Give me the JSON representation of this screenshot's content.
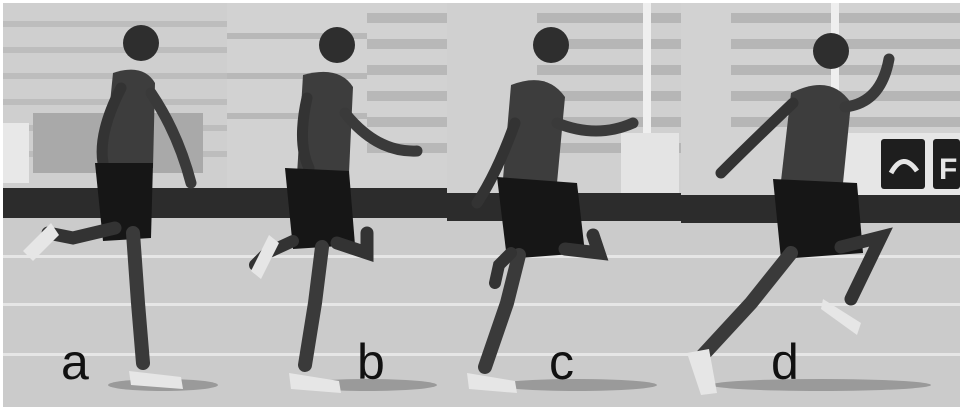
{
  "figure": {
    "panels": [
      {
        "id": "a",
        "label": "a"
      },
      {
        "id": "b",
        "label": "b"
      },
      {
        "id": "c",
        "label": "c"
      },
      {
        "id": "d",
        "label": "d"
      }
    ],
    "colors": {
      "sky": "#d8d8d8",
      "bleachers_light": "#c9c9c9",
      "bleachers_dark": "#8e8e8e",
      "wall": "#2a2a2a",
      "track": "#cfcfcf",
      "track_line": "#e9e9e9",
      "skin": "#3a3a3a",
      "shorts": "#161616",
      "shoe": "#e6e6e6",
      "label": "#111111"
    },
    "sign_text": "F"
  }
}
